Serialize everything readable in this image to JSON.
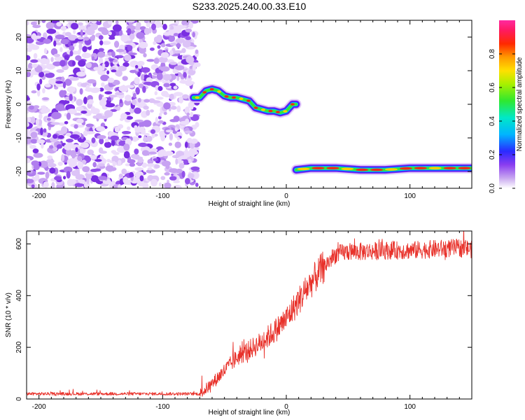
{
  "title": "S233.2025.240.00.33.E10",
  "chart_data": [
    {
      "type": "heatmap",
      "xlabel": "Height of straight line (km)",
      "ylabel": "Frequency (Hz)",
      "xlim": [
        -210,
        150
      ],
      "ylim": [
        -25,
        25
      ],
      "xticks": [
        -200,
        -100,
        0,
        100
      ],
      "xtick_labels": [
        "-200",
        "-100",
        "0",
        "100"
      ],
      "yticks": [
        -20,
        -10,
        0,
        10,
        20
      ],
      "ytick_labels": [
        "-20",
        "-10",
        "0",
        "10",
        "20"
      ],
      "colorbar": {
        "label": "Normalized spectral amplitude",
        "range": [
          0,
          1
        ],
        "ticks": [
          0,
          0.2,
          0.4,
          0.6,
          0.8
        ],
        "tick_labels": [
          "0.0",
          "0.2",
          "0.4",
          "0.6",
          "0.8"
        ]
      },
      "noise_region_x": [
        -210,
        -72
      ],
      "tracks": [
        {
          "name": "upper track",
          "x": [
            -75,
            -70,
            -65,
            -60,
            -55,
            -50,
            -45,
            -40,
            -35,
            -30,
            -25,
            -20,
            -15,
            -10,
            -5,
            0,
            5,
            8
          ],
          "y": [
            2,
            2,
            4,
            4.5,
            4,
            2.5,
            2,
            2,
            1.5,
            1,
            -1,
            -1.5,
            -2,
            -2,
            -2.5,
            -2,
            0,
            0
          ]
        },
        {
          "name": "lower track",
          "x": [
            8,
            20,
            40,
            60,
            80,
            100,
            120,
            150
          ],
          "y": [
            -19.5,
            -19,
            -19,
            -19.5,
            -19.5,
            -19,
            -19,
            -19
          ]
        }
      ]
    },
    {
      "type": "line",
      "xlabel": "Height of straight line (km)",
      "ylabel": "SNR (10 * v/v)",
      "xlim": [
        -210,
        150
      ],
      "ylim": [
        0,
        650
      ],
      "xticks": [
        -200,
        -100,
        0,
        100
      ],
      "xtick_labels": [
        "-200",
        "-100",
        "0",
        "100"
      ],
      "yticks": [
        0,
        200,
        400,
        600
      ],
      "ytick_labels": [
        "0",
        "200",
        "400",
        "600"
      ],
      "series": [
        {
          "name": "SNR",
          "color": "#e8312a",
          "x": [
            -210,
            -150,
            -100,
            -70,
            -67,
            -60,
            -50,
            -40,
            -30,
            -20,
            -10,
            0,
            10,
            20,
            30,
            40,
            50,
            60,
            80,
            100,
            120,
            140,
            150
          ],
          "y": [
            20,
            20,
            20,
            20,
            30,
            60,
            110,
            160,
            190,
            220,
            260,
            310,
            380,
            450,
            510,
            560,
            570,
            570,
            575,
            575,
            580,
            585,
            580
          ]
        }
      ]
    }
  ]
}
